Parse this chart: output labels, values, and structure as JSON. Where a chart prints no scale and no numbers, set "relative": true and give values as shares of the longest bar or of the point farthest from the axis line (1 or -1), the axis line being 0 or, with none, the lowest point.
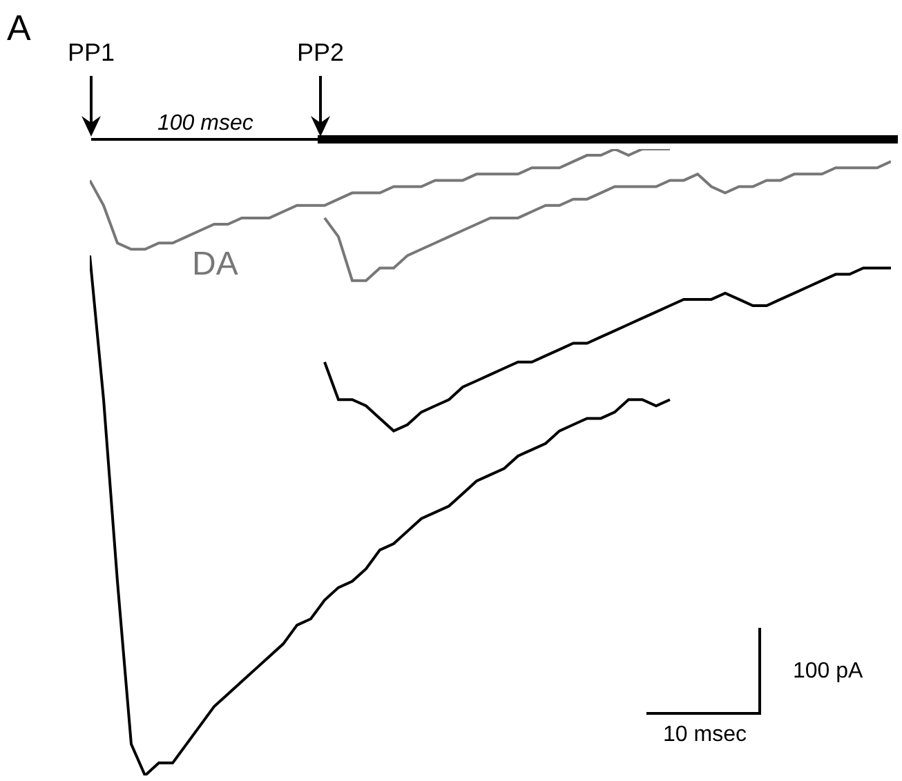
{
  "chart_data": {
    "type": "line",
    "relative": true,
    "legend": false,
    "categories": [
      null,
      null,
      null,
      null,
      null,
      null,
      null,
      null,
      null,
      null,
      null,
      null,
      null,
      null,
      null,
      null,
      null,
      null,
      null,
      null,
      null,
      null,
      null,
      null,
      null,
      null,
      null,
      null,
      null,
      null,
      null,
      null,
      null,
      null,
      null,
      null,
      null,
      null,
      null,
      null,
      null,
      null,
      null,
      null,
      null,
      null,
      null,
      null,
      null,
      null,
      null,
      null,
      null,
      null,
      null,
      null,
      null,
      null,
      null
    ],
    "annotations": [
      "A",
      "PP1",
      "PP2",
      "100 msec",
      "100 pA",
      "10 msec"
    ],
    "series": [
      {
        "name": "DA",
        "color": "#777777",
        "values": [
          0.95,
          0.91,
          0.85,
          0.84,
          0.84,
          0.85,
          0.85,
          0.86,
          0.87,
          0.88,
          0.88,
          0.89,
          0.89,
          0.89,
          0.9,
          0.91,
          0.91,
          0.91,
          0.92,
          0.93,
          0.93,
          0.93,
          0.94,
          0.94,
          0.94,
          0.95,
          0.95,
          0.95,
          0.96,
          0.96,
          0.96,
          0.96,
          0.97,
          0.97,
          0.97,
          0.98,
          0.99,
          0.99,
          1.0,
          0.99,
          1.0,
          1.0,
          1.0,
          null,
          null,
          null,
          null,
          null,
          null,
          null,
          null,
          null,
          null,
          null,
          null,
          null,
          null,
          null,
          null
        ]
      },
      {
        "color": "#777777",
        "values": [
          null,
          null,
          null,
          null,
          null,
          null,
          null,
          null,
          null,
          null,
          null,
          null,
          null,
          null,
          null,
          null,
          null,
          0.89,
          0.86,
          0.79,
          0.79,
          0.81,
          0.81,
          0.83,
          0.84,
          0.85,
          0.86,
          0.87,
          0.88,
          0.89,
          0.89,
          0.89,
          0.9,
          0.91,
          0.91,
          0.92,
          0.92,
          0.93,
          0.94,
          0.94,
          0.94,
          0.94,
          0.95,
          0.95,
          0.96,
          0.94,
          0.93,
          0.94,
          0.94,
          0.95,
          0.95,
          0.96,
          0.96,
          0.96,
          0.97,
          0.97,
          0.97,
          0.97,
          0.98
        ]
      },
      {
        "color": "#000000",
        "values": [
          null,
          null,
          null,
          null,
          null,
          null,
          null,
          null,
          null,
          null,
          null,
          null,
          null,
          null,
          null,
          null,
          null,
          0.66,
          0.6,
          0.6,
          0.59,
          0.57,
          0.55,
          0.56,
          0.58,
          0.59,
          0.6,
          0.62,
          0.63,
          0.64,
          0.65,
          0.66,
          0.66,
          0.67,
          0.68,
          0.69,
          0.69,
          0.7,
          0.71,
          0.72,
          0.73,
          0.74,
          0.75,
          0.76,
          0.76,
          0.76,
          0.77,
          0.76,
          0.75,
          0.75,
          0.76,
          0.77,
          0.78,
          0.79,
          0.8,
          0.8,
          0.81,
          0.81,
          0.81
        ]
      },
      {
        "color": "#000000",
        "values": [
          0.83,
          0.6,
          0.31,
          0.05,
          0.0,
          0.02,
          0.02,
          0.05,
          0.08,
          0.11,
          0.13,
          0.15,
          0.17,
          0.19,
          0.21,
          0.24,
          0.25,
          0.28,
          0.3,
          0.31,
          0.33,
          0.36,
          0.37,
          0.39,
          0.41,
          0.42,
          0.43,
          0.45,
          0.47,
          0.48,
          0.49,
          0.51,
          0.52,
          0.53,
          0.55,
          0.56,
          0.57,
          0.57,
          0.58,
          0.6,
          0.6,
          0.59,
          0.6,
          null,
          null,
          null,
          null,
          null,
          null,
          null,
          null,
          null,
          null,
          null,
          null,
          null,
          null,
          null,
          null
        ]
      }
    ]
  }
}
